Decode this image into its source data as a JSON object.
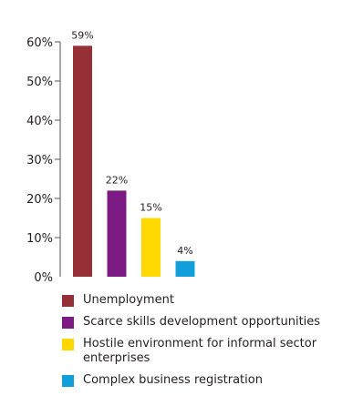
{
  "chart_data": {
    "type": "bar",
    "categories": [
      "Unemployment",
      "Scarce skills development opportunities",
      "Hostile environment for informal sector enterprises",
      "Complex business registration"
    ],
    "values": [
      59,
      22,
      15,
      4
    ],
    "data_labels": [
      "59%",
      "22%",
      "15%",
      "4%"
    ],
    "colors": [
      "#973036",
      "#7b1a83",
      "#ffd800",
      "#109fdb"
    ],
    "ylim": [
      0,
      60
    ],
    "yticks": [
      0,
      10,
      20,
      30,
      40,
      50,
      60
    ],
    "ytick_labels": [
      "0%",
      "10%",
      "20%",
      "30%",
      "40%",
      "50%",
      "60%"
    ],
    "title": "",
    "xlabel": "",
    "ylabel": "",
    "grid": false,
    "legend_position": "bottom"
  }
}
